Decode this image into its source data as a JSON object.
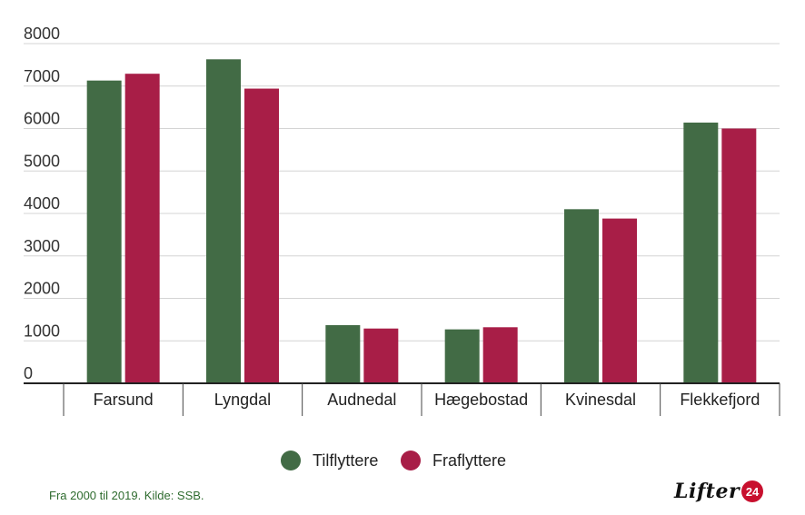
{
  "chart_data": {
    "type": "bar",
    "categories": [
      "Farsund",
      "Lyngdal",
      "Audnedal",
      "Hægebostad",
      "Kvinesdal",
      "Flekkefjord"
    ],
    "series": [
      {
        "name": "Tilflyttere",
        "color": "#426b45",
        "values": [
          7130,
          7630,
          1370,
          1270,
          4100,
          6140
        ]
      },
      {
        "name": "Fraflyttere",
        "color": "#a81e47",
        "values": [
          7290,
          6940,
          1290,
          1320,
          3880,
          6000
        ]
      }
    ],
    "yticks": [
      "0",
      "1000",
      "2000",
      "3000",
      "4000",
      "5000",
      "6000",
      "7000",
      "8000"
    ],
    "ylim": [
      0,
      8000
    ],
    "grid": true,
    "legend_position": "bottom-center",
    "title": "",
    "xlabel": "",
    "ylabel": ""
  },
  "footer": {
    "source": "Fra 2000 til 2019. Kilde: SSB.",
    "logo_text": "Lifter",
    "logo_badge": "24"
  }
}
